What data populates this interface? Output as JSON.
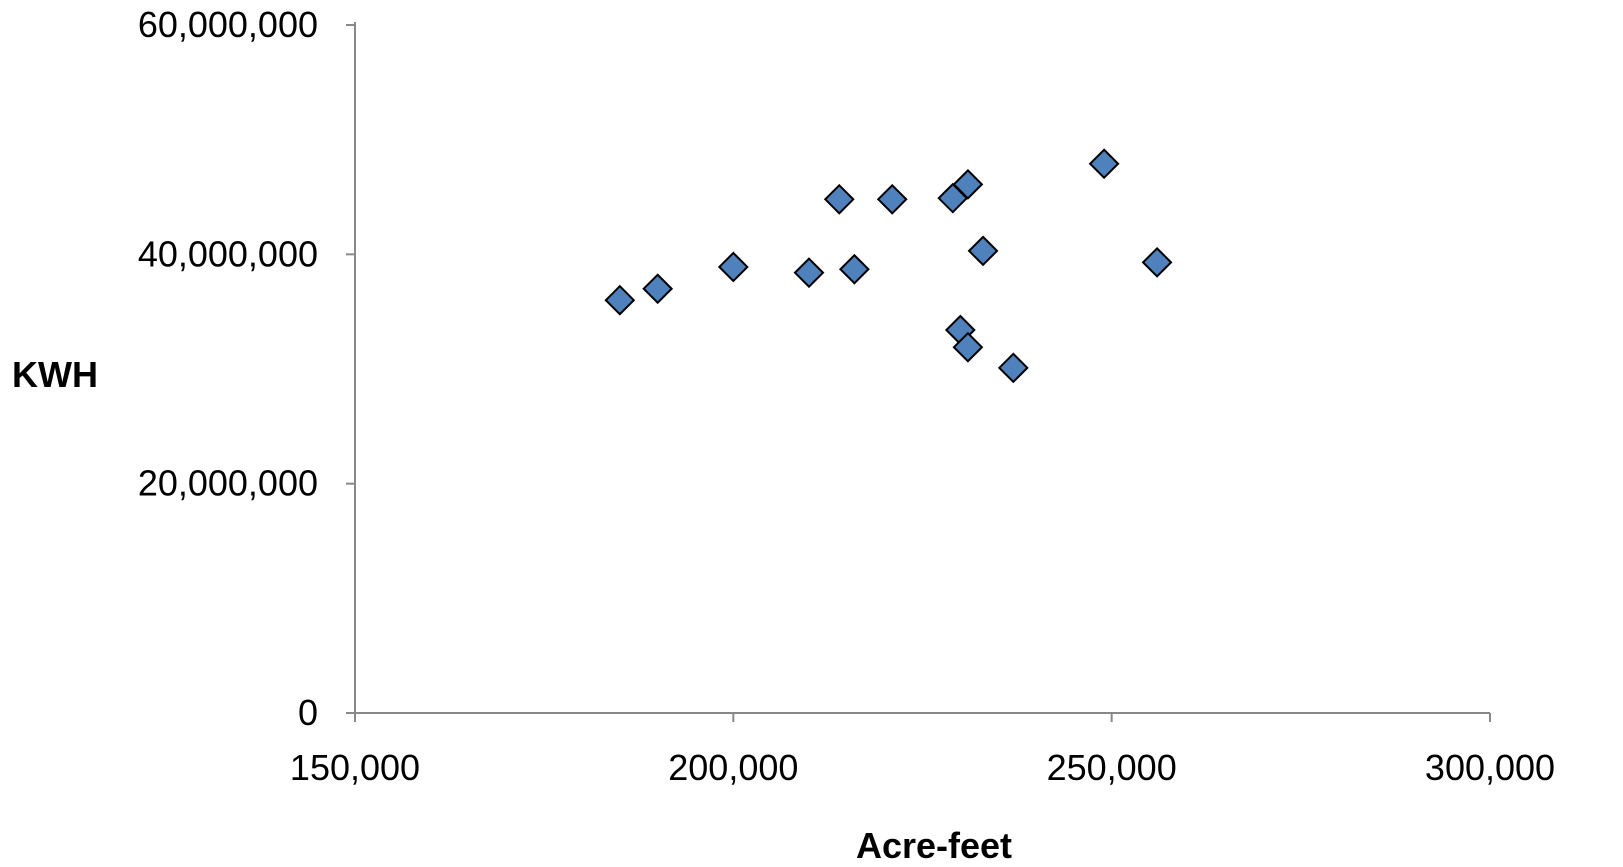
{
  "chart_data": {
    "type": "scatter",
    "xlabel": "Acre-feet",
    "ylabel": "KWH",
    "xlim": [
      150000,
      300000
    ],
    "ylim": [
      0,
      60000000
    ],
    "xticks": [
      150000,
      200000,
      250000,
      300000
    ],
    "yticks": [
      0,
      20000000,
      40000000,
      60000000
    ],
    "xtick_labels": [
      "150,000",
      "200,000",
      "250,000",
      "300,000"
    ],
    "ytick_labels": [
      "0",
      "20,000,000",
      "40,000,000",
      "60,000,000"
    ],
    "grid": false,
    "legend": "none",
    "marker": "diamond",
    "marker_fill": "#4F81BD",
    "marker_stroke": "#000000",
    "series": [
      {
        "points": [
          {
            "x": 185000,
            "y": 36000000
          },
          {
            "x": 190000,
            "y": 37000000
          },
          {
            "x": 200000,
            "y": 38900000
          },
          {
            "x": 210000,
            "y": 38400000
          },
          {
            "x": 214000,
            "y": 44800000
          },
          {
            "x": 216000,
            "y": 38700000
          },
          {
            "x": 221000,
            "y": 44800000
          },
          {
            "x": 229000,
            "y": 44900000
          },
          {
            "x": 231000,
            "y": 46100000
          },
          {
            "x": 230000,
            "y": 33400000
          },
          {
            "x": 231000,
            "y": 31900000
          },
          {
            "x": 233000,
            "y": 40300000
          },
          {
            "x": 237000,
            "y": 30100000
          },
          {
            "x": 249000,
            "y": 47900000
          },
          {
            "x": 256000,
            "y": 39300000
          }
        ]
      }
    ]
  }
}
